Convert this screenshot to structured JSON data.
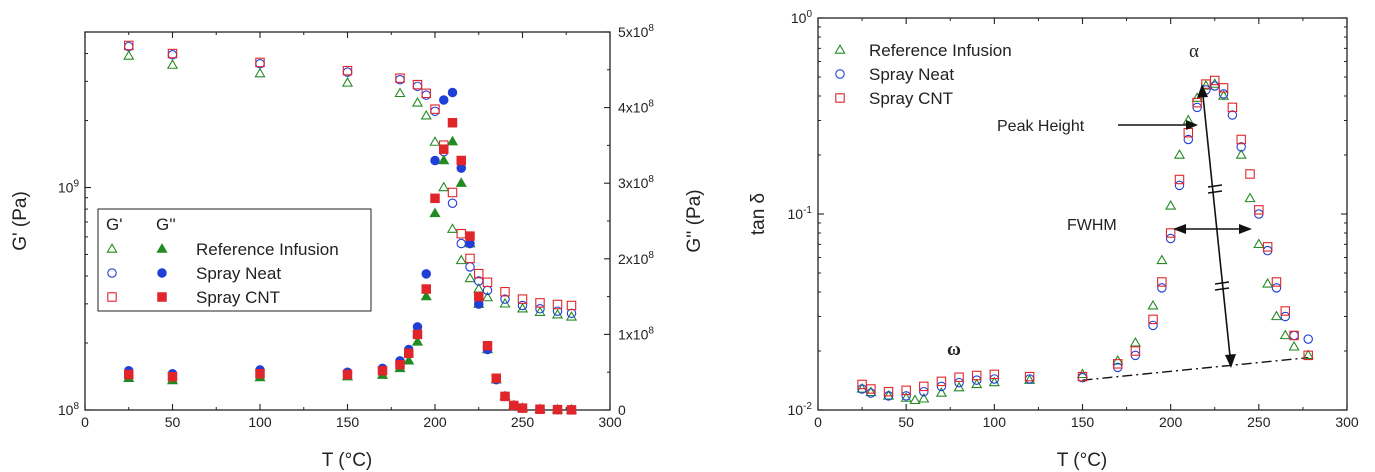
{
  "chart_data": [
    {
      "type": "scatter",
      "xlabel": "T (°C)",
      "ylabel": "G' (Pa)",
      "y2label": "G'' (Pa)",
      "xlim": [
        0,
        300
      ],
      "ylim": [
        100000000,
        5000000000
      ],
      "yscale": "log",
      "y2lim": [
        0,
        500000000
      ],
      "xticks": [
        "0",
        "50",
        "100",
        "150",
        "200",
        "250",
        "300"
      ],
      "yticks": [
        "10⁸",
        "10⁹"
      ],
      "y2ticks": [
        "0",
        "1x10⁸",
        "2x10⁸",
        "3x10⁸",
        "4x10⁸",
        "5x10⁸"
      ],
      "legend": {
        "placement": "left",
        "header": [
          "G'",
          "G''"
        ],
        "entries": [
          "Reference Infusion",
          "Spray Neat",
          "Spray CNT"
        ]
      },
      "series": [
        {
          "name": "Reference Infusion",
          "quantity": "G'",
          "axis": "left",
          "marker": "open-triangle",
          "color": "#228B22",
          "x": [
            25,
            50,
            100,
            150,
            180,
            190,
            195,
            200,
            205,
            210,
            215,
            220,
            225,
            230,
            240,
            250,
            260,
            270,
            278
          ],
          "y": [
            3900000000,
            3550000000,
            3250000000,
            2950000000,
            2650000000,
            2400000000,
            2100000000,
            1600000000,
            1000000000,
            650000000,
            470000000,
            390000000,
            350000000,
            320000000,
            300000000,
            285000000,
            275000000,
            268000000,
            262000000
          ]
        },
        {
          "name": "Spray Neat",
          "quantity": "G'",
          "axis": "left",
          "marker": "open-circle",
          "color": "#1F3FD6",
          "x": [
            25,
            50,
            100,
            150,
            180,
            190,
            195,
            200,
            205,
            210,
            215,
            220,
            225,
            230,
            240,
            250,
            260,
            270,
            278
          ],
          "y": [
            4300000000,
            3950000000,
            3600000000,
            3300000000,
            3050000000,
            2850000000,
            2600000000,
            2200000000,
            1450000000,
            850000000,
            560000000,
            440000000,
            380000000,
            345000000,
            315000000,
            295000000,
            285000000,
            278000000,
            272000000
          ]
        },
        {
          "name": "Spray CNT",
          "quantity": "G'",
          "axis": "left",
          "marker": "open-square",
          "color": "#E0262A",
          "x": [
            25,
            50,
            100,
            150,
            180,
            190,
            195,
            200,
            205,
            210,
            215,
            220,
            225,
            230,
            240,
            250,
            260,
            270,
            278
          ],
          "y": [
            4350000000,
            4000000000,
            3650000000,
            3350000000,
            3100000000,
            2900000000,
            2650000000,
            2250000000,
            1550000000,
            950000000,
            620000000,
            480000000,
            410000000,
            375000000,
            340000000,
            315000000,
            303000000,
            298000000,
            295000000
          ]
        },
        {
          "name": "Reference Infusion",
          "quantity": "G''",
          "axis": "right",
          "marker": "filled-triangle",
          "color": "#228B22",
          "x": [
            25,
            50,
            100,
            150,
            170,
            180,
            185,
            190,
            195,
            200,
            205,
            210,
            215,
            220,
            225,
            230,
            235,
            240,
            245,
            250,
            260,
            270,
            278
          ],
          "y": [
            42000000,
            39000000,
            43000000,
            44000000,
            46000000,
            55000000,
            65000000,
            90000000,
            150000000,
            260000000,
            330000000,
            355000000,
            300000000,
            220000000,
            140000000,
            80000000,
            40000000,
            18000000,
            6000000,
            2500000,
            1000000,
            500000,
            200000
          ]
        },
        {
          "name": "Spray Neat",
          "quantity": "G''",
          "axis": "right",
          "marker": "filled-circle",
          "color": "#1F3FD6",
          "x": [
            25,
            50,
            100,
            150,
            170,
            180,
            185,
            190,
            195,
            200,
            205,
            210,
            215,
            220,
            225,
            230,
            235,
            240,
            245,
            250,
            260,
            270,
            278
          ],
          "y": [
            52000000,
            48000000,
            53000000,
            50000000,
            55000000,
            65000000,
            80000000,
            110000000,
            180000000,
            330000000,
            410000000,
            420000000,
            320000000,
            220000000,
            140000000,
            80000000,
            40000000,
            18000000,
            6000000,
            2500000,
            1000000,
            500000,
            200000
          ]
        },
        {
          "name": "Spray CNT",
          "quantity": "G''",
          "axis": "right",
          "marker": "filled-square",
          "color": "#E0262A",
          "x": [
            25,
            50,
            100,
            150,
            170,
            180,
            185,
            190,
            195,
            200,
            205,
            210,
            215,
            220,
            225,
            230,
            235,
            240,
            245,
            250,
            260,
            270,
            278
          ],
          "y": [
            47000000,
            44000000,
            48000000,
            47000000,
            52000000,
            60000000,
            75000000,
            100000000,
            160000000,
            280000000,
            345000000,
            380000000,
            330000000,
            230000000,
            150000000,
            85000000,
            42000000,
            18000000,
            6000000,
            2500000,
            1000000,
            500000,
            200000
          ]
        }
      ]
    },
    {
      "type": "scatter",
      "xlabel": "T (°C)",
      "ylabel": "tan δ",
      "xlim": [
        0,
        300
      ],
      "ylim": [
        0.01,
        1
      ],
      "yscale": "log",
      "xticks": [
        "0",
        "50",
        "100",
        "150",
        "200",
        "250",
        "300"
      ],
      "yticks": [
        "10⁻²",
        "10⁻¹",
        "10⁰"
      ],
      "legend": {
        "placement": "top-left",
        "entries": [
          "Reference Infusion",
          "Spray Neat",
          "Spray CNT"
        ]
      },
      "annotations": {
        "alpha": "α",
        "omega": "ω",
        "peak_height": "Peak Height",
        "fwhm": "FWHM",
        "baseline": {
          "x": [
            150,
            278
          ],
          "y": [
            0.0142,
            0.0185
          ]
        }
      },
      "series": [
        {
          "name": "Reference Infusion",
          "marker": "open-triangle",
          "color": "#228B22",
          "x": [
            25,
            30,
            40,
            50,
            55,
            60,
            70,
            80,
            90,
            100,
            120,
            150,
            170,
            180,
            190,
            195,
            200,
            205,
            210,
            215,
            220,
            225,
            230,
            240,
            245,
            250,
            255,
            260,
            265,
            270,
            278
          ],
          "y": [
            0.0128,
            0.0123,
            0.0118,
            0.0115,
            0.0112,
            0.0114,
            0.0122,
            0.013,
            0.0135,
            0.0138,
            0.0142,
            0.0152,
            0.0178,
            0.022,
            0.034,
            0.058,
            0.11,
            0.2,
            0.3,
            0.39,
            0.45,
            0.46,
            0.4,
            0.2,
            0.12,
            0.07,
            0.044,
            0.03,
            0.024,
            0.021,
            0.019
          ]
        },
        {
          "name": "Spray Neat",
          "marker": "open-circle",
          "color": "#1F3FD6",
          "x": [
            25,
            30,
            40,
            50,
            60,
            70,
            80,
            90,
            100,
            120,
            150,
            170,
            180,
            190,
            195,
            200,
            205,
            210,
            215,
            220,
            225,
            230,
            235,
            240,
            250,
            255,
            260,
            265,
            270,
            278
          ],
          "y": [
            0.0128,
            0.0122,
            0.0118,
            0.0118,
            0.0124,
            0.0132,
            0.0138,
            0.0142,
            0.0144,
            0.0144,
            0.0146,
            0.0165,
            0.019,
            0.027,
            0.042,
            0.075,
            0.14,
            0.24,
            0.35,
            0.43,
            0.45,
            0.41,
            0.32,
            0.22,
            0.1,
            0.065,
            0.042,
            0.03,
            0.024,
            0.023
          ]
        },
        {
          "name": "Spray CNT",
          "marker": "open-square",
          "color": "#E0262A",
          "x": [
            25,
            30,
            40,
            50,
            60,
            70,
            80,
            90,
            100,
            120,
            150,
            170,
            180,
            190,
            195,
            200,
            205,
            210,
            215,
            220,
            225,
            230,
            235,
            240,
            245,
            250,
            255,
            260,
            265,
            270,
            278
          ],
          "y": [
            0.0135,
            0.0128,
            0.0124,
            0.0126,
            0.0132,
            0.014,
            0.0147,
            0.015,
            0.0152,
            0.0148,
            0.0148,
            0.0172,
            0.02,
            0.029,
            0.045,
            0.08,
            0.15,
            0.26,
            0.37,
            0.46,
            0.48,
            0.44,
            0.35,
            0.24,
            0.16,
            0.105,
            0.068,
            0.045,
            0.032,
            0.024,
            0.019
          ]
        }
      ]
    }
  ]
}
